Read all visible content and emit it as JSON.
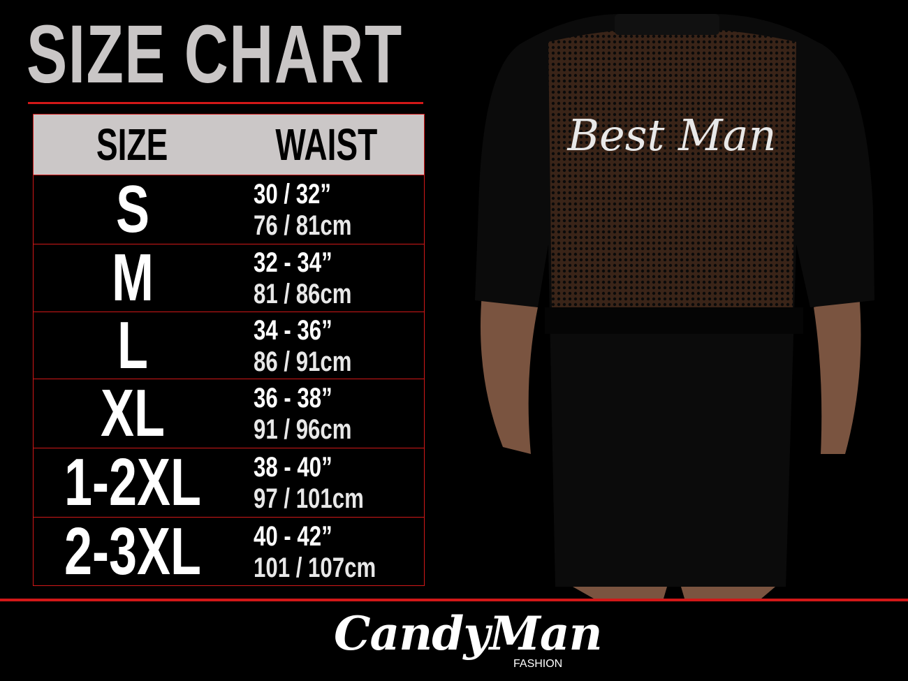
{
  "title": "SIZE CHART",
  "table": {
    "headers": [
      "SIZE",
      "WAIST"
    ],
    "rows": [
      {
        "size": "S",
        "inches": "30 / 32”",
        "cm": "76 / 81cm"
      },
      {
        "size": "M",
        "inches": "32 - 34”",
        "cm": "81 / 86cm"
      },
      {
        "size": "L",
        "inches": "34 - 36”",
        "cm": "86 / 91cm"
      },
      {
        "size": "XL",
        "inches": "36 - 38”",
        "cm": "91 / 96cm"
      },
      {
        "size": "1-2XL",
        "inches": "38 - 40”",
        "cm": "97 / 101cm"
      },
      {
        "size": "2-3XL",
        "inches": "40 - 42”",
        "cm": "101 / 107cm"
      }
    ]
  },
  "product_print": "Best Man",
  "brand": {
    "name": "CandyMan",
    "sub": "FASHION"
  },
  "colors": {
    "accent": "#d21818",
    "header_bg": "#cbc7c7",
    "background": "#000000"
  }
}
